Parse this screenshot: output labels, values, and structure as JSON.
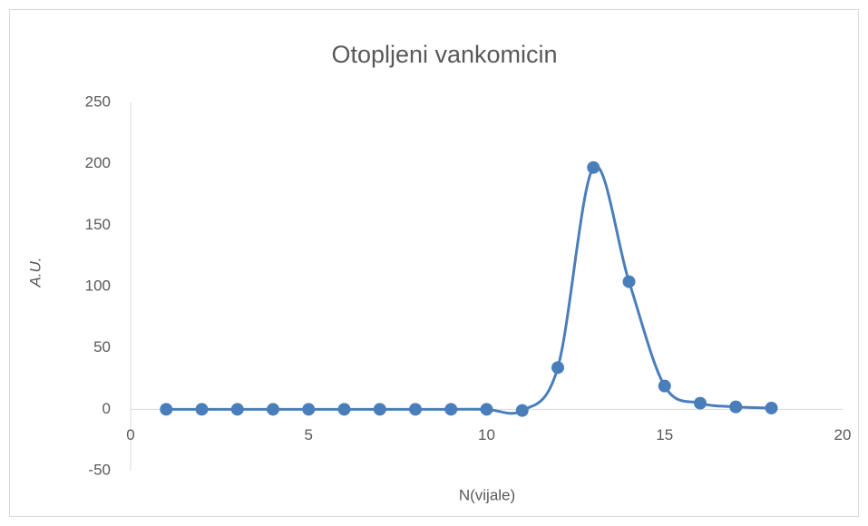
{
  "chart_data": {
    "type": "scatter",
    "title": "Otopljeni vankomicin",
    "x_label": "N(vijale)",
    "y_label": "A.U.",
    "x": [
      1,
      2,
      3,
      4,
      5,
      6,
      7,
      8,
      9,
      10,
      11,
      12,
      13,
      14,
      15,
      16,
      17,
      18
    ],
    "series": [
      {
        "name": "Otopljeni vankomicin",
        "color": "#4a7ebb",
        "values": [
          0,
          0,
          0,
          0,
          0,
          0,
          0,
          0,
          0,
          0,
          -1,
          34,
          197,
          104,
          19,
          5,
          2,
          1
        ]
      }
    ],
    "smooth": true,
    "grid": false,
    "xlim": [
      0,
      20
    ],
    "xticks": [
      0,
      5,
      10,
      15,
      20
    ],
    "ylim": [
      -50,
      250
    ],
    "yticks": [
      -50,
      0,
      50,
      100,
      150,
      200,
      250
    ]
  }
}
